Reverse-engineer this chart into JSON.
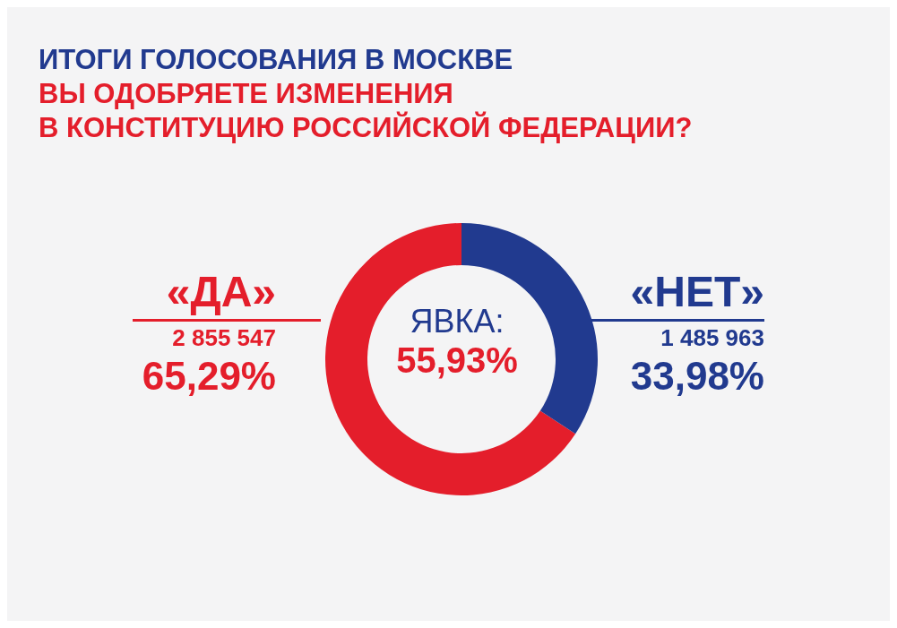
{
  "chart_data": {
    "type": "donut",
    "title": "ИТОГИ ГОЛОСОВАНИЯ В МОСКВЕ",
    "subtitle": "ВЫ ОДОБРЯЕТЕ ИЗМЕНЕНИЯ\nВ КОНСТИТУЦИЮ РОССИЙСКОЙ ФЕДЕРАЦИИ?",
    "categories": [
      "«ДА»",
      "«НЕТ»"
    ],
    "values": [
      65.29,
      33.98
    ],
    "colors": [
      "#e41e2b",
      "#213a8f"
    ],
    "value_labels": [
      "65,29%",
      "33,98%"
    ],
    "annotations": [
      "2 855 547",
      "1 485 963",
      "ЯВКА:",
      "55,93%"
    ]
  }
}
